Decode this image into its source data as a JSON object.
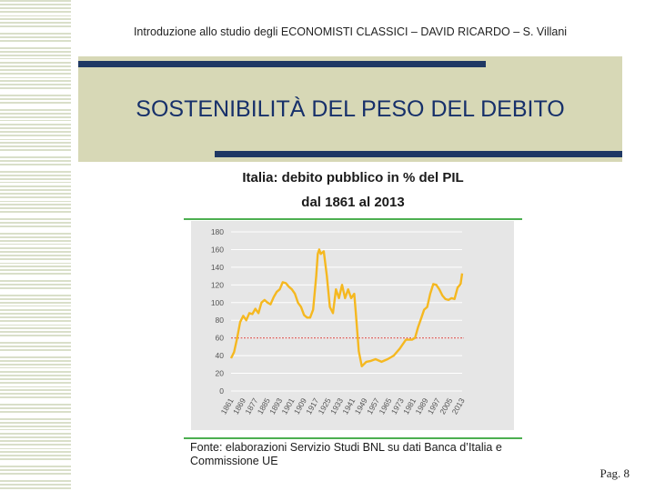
{
  "header": {
    "text": "Introduzione allo studio degli ECONOMISTI CLASSICI – DAVID RICARDO – S. Villani"
  },
  "slide": {
    "title": "SOSTENIBILITÀ DEL PESO DEL DEBITO",
    "page": "Pag. 8"
  },
  "chart_title": {
    "line1": "Italia: debito pubblico in % del PIL",
    "line2": "dal 1861 al 2013"
  },
  "source": {
    "line1": "Fonte: elaborazioni Servizio Studi BNL su dati Banca d’Italia e",
    "line2": "Commissione UE"
  },
  "colors": {
    "series": "#f5b820",
    "threshold": "#d9534f",
    "plot_bg": "#e6e6e6",
    "accent_bar": "#1f3864",
    "band": "#d7d8b6"
  },
  "chart_data": {
    "type": "line",
    "title": "Italia: debito pubblico in % del PIL",
    "subtitle": "dal 1861 al 2013",
    "ylim": [
      0,
      180
    ],
    "yticks": [
      0,
      20,
      40,
      60,
      80,
      100,
      120,
      140,
      160,
      180
    ],
    "xlim": [
      1861,
      2013
    ],
    "xticks": [
      1861,
      1869,
      1877,
      1885,
      1893,
      1901,
      1909,
      1917,
      1925,
      1933,
      1941,
      1949,
      1957,
      1965,
      1973,
      1981,
      1989,
      1997,
      2005,
      2013
    ],
    "grid": true,
    "threshold": 60,
    "series": [
      {
        "name": "",
        "x": [
          1861,
          1863,
          1865,
          1867,
          1869,
          1871,
          1873,
          1875,
          1877,
          1879,
          1881,
          1883,
          1885,
          1887,
          1889,
          1891,
          1893,
          1895,
          1897,
          1899,
          1901,
          1903,
          1905,
          1907,
          1909,
          1911,
          1913,
          1915,
          1917,
          1918,
          1919,
          1920,
          1922,
          1924,
          1926,
          1928,
          1930,
          1932,
          1934,
          1936,
          1938,
          1940,
          1942,
          1943,
          1945,
          1947,
          1950,
          1953,
          1956,
          1960,
          1964,
          1968,
          1972,
          1976,
          1980,
          1982,
          1984,
          1986,
          1988,
          1990,
          1992,
          1994,
          1996,
          1998,
          2000,
          2002,
          2004,
          2006,
          2008,
          2010,
          2012,
          2013
        ],
        "y": [
          37,
          44,
          60,
          78,
          85,
          80,
          88,
          87,
          93,
          88,
          100,
          103,
          100,
          98,
          106,
          112,
          115,
          123,
          122,
          118,
          115,
          110,
          100,
          95,
          86,
          83,
          83,
          92,
          130,
          155,
          160,
          155,
          158,
          130,
          95,
          88,
          115,
          105,
          120,
          105,
          115,
          105,
          110,
          90,
          45,
          28,
          33,
          34,
          36,
          33,
          36,
          40,
          48,
          58,
          58,
          60,
          72,
          82,
          92,
          95,
          110,
          121,
          120,
          115,
          108,
          104,
          103,
          105,
          104,
          117,
          121,
          133
        ]
      }
    ]
  }
}
